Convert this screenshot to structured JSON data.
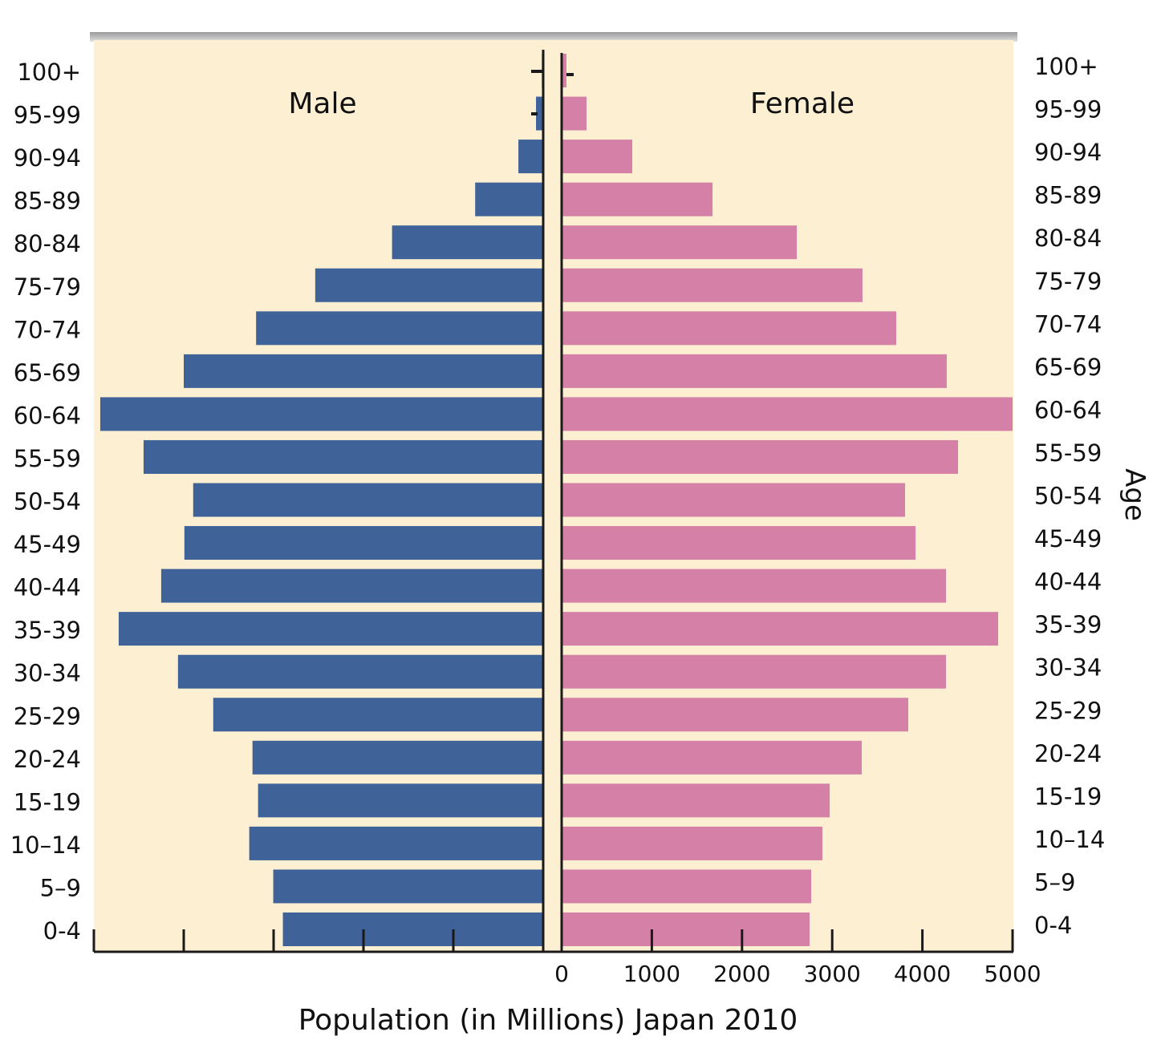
{
  "chart_data": {
    "type": "bar",
    "orientation": "horizontal",
    "subtype": "population-pyramid",
    "xlabel": "Population (in Millions) Japan 2010",
    "ylabel": "Age",
    "xlim": [
      0,
      5000
    ],
    "xticks": [
      "0",
      "1000",
      "2000",
      "3000",
      "4000",
      "5000"
    ],
    "grid": false,
    "background": "#fdf0d2",
    "categories": [
      "100+",
      "95-99",
      "90-94",
      "85-89",
      "80-84",
      "75-79",
      "70-74",
      "65-69",
      "60-64",
      "55-59",
      "50-54",
      "45-49",
      "40-44",
      "35-39",
      "30-34",
      "25-29",
      "20-24",
      "15-19",
      "10–14",
      "5–9",
      "0-4"
    ],
    "series": [
      {
        "name": "Male",
        "color": "#3f6399",
        "values": [
          15,
          80,
          276,
          757,
          1682,
          2537,
          3195,
          4000,
          4929,
          4447,
          3895,
          3993,
          4251,
          4724,
          4064,
          3672,
          3235,
          3173,
          3271,
          3004,
          2897
        ]
      },
      {
        "name": "Female",
        "color": "#d580a6",
        "values": [
          53,
          276,
          783,
          1673,
          2607,
          3336,
          3710,
          4270,
          5000,
          4395,
          3808,
          3924,
          4262,
          4840,
          4262,
          3843,
          3327,
          2972,
          2891,
          2767,
          2749
        ]
      }
    ]
  }
}
